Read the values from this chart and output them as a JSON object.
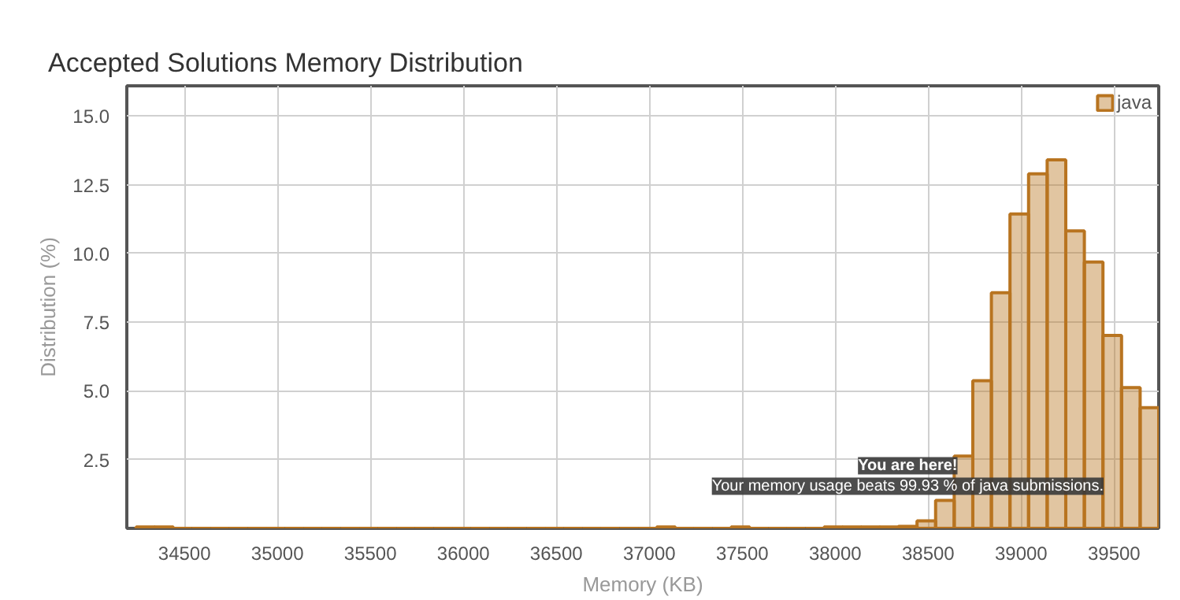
{
  "chart_data": {
    "type": "histogram",
    "title": "Accepted Solutions Memory Distribution",
    "xlabel": "Memory (KB)",
    "ylabel": "Distribution (%)",
    "bins": [
      34240,
      34340,
      34440,
      34540,
      34640,
      34740,
      34840,
      34940,
      35040,
      35140,
      35240,
      35340,
      35440,
      35540,
      35640,
      35740,
      35840,
      35940,
      36040,
      36140,
      36240,
      36340,
      36440,
      36540,
      36640,
      36740,
      36840,
      36940,
      37040,
      37140,
      37240,
      37340,
      37440,
      37540,
      37640,
      37740,
      37840,
      37940,
      38040,
      38140,
      38240,
      38340,
      38440,
      38540,
      38640,
      38740,
      38840,
      38940,
      39040,
      39140,
      39240,
      39340,
      39440,
      39540,
      39640,
      39740
    ],
    "series": [
      {
        "name": "java",
        "color": "#b87420",
        "values": [
          0.05,
          0.05,
          0,
          0,
          0,
          0,
          0,
          0,
          0,
          0,
          0,
          0,
          0,
          0,
          0,
          0,
          0,
          0,
          0,
          0,
          0,
          0,
          0,
          0,
          0,
          0,
          0,
          0,
          0.05,
          0,
          0,
          0,
          0.05,
          0,
          0,
          0,
          0,
          0.05,
          0.05,
          0.05,
          0.05,
          0.07,
          0.27,
          1.02,
          2.63,
          5.37,
          8.57,
          11.44,
          12.9,
          13.41,
          10.82,
          9.69,
          7.02,
          5.12,
          4.39
        ]
      }
    ],
    "xlim": [
      34190,
      39740
    ],
    "ylim": [
      0,
      16.1
    ],
    "xticks": [
      34500,
      35000,
      35500,
      36000,
      36500,
      37000,
      37500,
      38000,
      38500,
      39000,
      39500
    ],
    "yticks": [
      {
        "value": 2.5,
        "label": "2.5"
      },
      {
        "value": 5,
        "label": "5.0"
      },
      {
        "value": 7.5,
        "label": "7.5"
      },
      {
        "value": 10,
        "label": "10.0"
      },
      {
        "value": 12.5,
        "label": "12.5"
      },
      {
        "value": 15,
        "label": "15.0"
      }
    ],
    "annotations": [
      {
        "text": "You are here!\nYour memory usage beats 99.93 % of java submissions.",
        "x": 38390,
        "y": 0.07
      }
    ],
    "grid": true,
    "legend": "top right"
  }
}
